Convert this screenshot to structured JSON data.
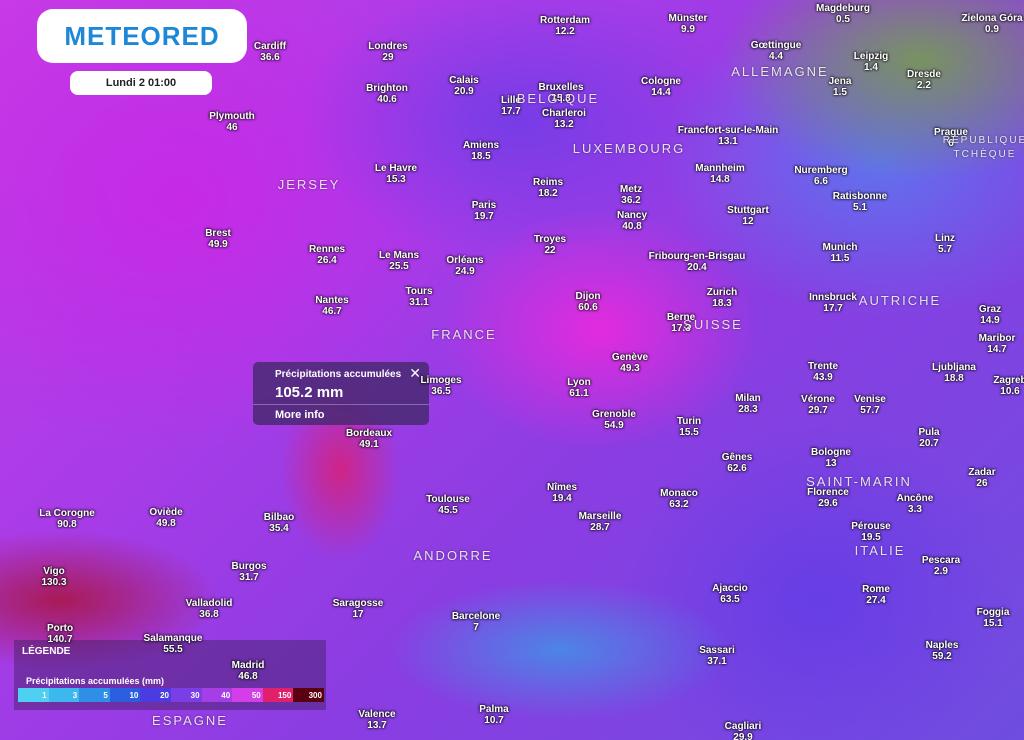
{
  "header": {
    "logo": "METEORED",
    "date": "Lundi 2 01:00"
  },
  "cities": [
    {
      "name": "Cardiff",
      "value": 36.6
    },
    {
      "name": "Londres",
      "value": 29
    },
    {
      "name": "Rotterdam",
      "value": 12.2
    },
    {
      "name": "Münster",
      "value": 9.9
    },
    {
      "name": "Magdeburg",
      "value": 0.5
    },
    {
      "name": "Zielona Góra",
      "value": 0.9
    },
    {
      "name": "Gœttingue",
      "value": 4.4
    },
    {
      "name": "Leipzig",
      "value": 1.4
    },
    {
      "name": "Dresde",
      "value": 2.2
    },
    {
      "name": "Jena",
      "value": 1.5
    },
    {
      "name": "Brighton",
      "value": 40.6
    },
    {
      "name": "Calais",
      "value": 20.9
    },
    {
      "name": "Bruxelles",
      "value": 15.3
    },
    {
      "name": "Lille",
      "value": 17.7
    },
    {
      "name": "Charleroi",
      "value": 13.2
    },
    {
      "name": "Cologne",
      "value": 14.4
    },
    {
      "name": "Plymouth",
      "value": 46
    },
    {
      "name": "Prague",
      "value": 6
    },
    {
      "name": "Francfort-sur-le-Main",
      "value": 13.1
    },
    {
      "name": "Amiens",
      "value": 18.5
    },
    {
      "name": "Le Havre",
      "value": 15.3
    },
    {
      "name": "Mannheim",
      "value": 14.8
    },
    {
      "name": "Nuremberg",
      "value": 6.6
    },
    {
      "name": "Reims",
      "value": 18.2
    },
    {
      "name": "Metz",
      "value": 36.2
    },
    {
      "name": "Ratisbonne",
      "value": 5.1
    },
    {
      "name": "Paris",
      "value": 19.7
    },
    {
      "name": "Nancy",
      "value": 40.8
    },
    {
      "name": "Stuttgart",
      "value": 12
    },
    {
      "name": "Brest",
      "value": 49.9
    },
    {
      "name": "Troyes",
      "value": 22
    },
    {
      "name": "Linz",
      "value": 5.7
    },
    {
      "name": "Rennes",
      "value": 26.4
    },
    {
      "name": "Munich",
      "value": 11.5
    },
    {
      "name": "Le Mans",
      "value": 25.5
    },
    {
      "name": "Orléans",
      "value": 24.9
    },
    {
      "name": "Fribourg-en-Brisgau",
      "value": 20.4
    },
    {
      "name": "Zurich",
      "value": 18.3
    },
    {
      "name": "Dijon",
      "value": 60.6
    },
    {
      "name": "Tours",
      "value": 31.1
    },
    {
      "name": "Innsbruck",
      "value": 17.7
    },
    {
      "name": "Nantes",
      "value": 46.7
    },
    {
      "name": "Graz",
      "value": 14.9
    },
    {
      "name": "Berne",
      "value": 17.3
    },
    {
      "name": "Maribor",
      "value": 14.7
    },
    {
      "name": "Genève",
      "value": 49.3
    },
    {
      "name": "Trente",
      "value": 43.9
    },
    {
      "name": "Ljubljana",
      "value": 18.8
    },
    {
      "name": "Limoges",
      "value": 36.5
    },
    {
      "name": "Zagreb",
      "value": 10.6
    },
    {
      "name": "Lyon",
      "value": 61.1
    },
    {
      "name": "Milan",
      "value": 28.3
    },
    {
      "name": "Vérone",
      "value": 29.7
    },
    {
      "name": "Venise",
      "value": 57.7
    },
    {
      "name": "Grenoble",
      "value": 54.9
    },
    {
      "name": "Turin",
      "value": 15.5
    },
    {
      "name": "Pula",
      "value": 20.7
    },
    {
      "name": "Bordeaux",
      "value": 49.1
    },
    {
      "name": "Bologne",
      "value": 13
    },
    {
      "name": "Gênes",
      "value": 62.6
    },
    {
      "name": "Zadar",
      "value": 26
    },
    {
      "name": "Nîmes",
      "value": 19.4
    },
    {
      "name": "Monaco",
      "value": 63.2
    },
    {
      "name": "Florence",
      "value": 29.6
    },
    {
      "name": "Ancône",
      "value": 3.3
    },
    {
      "name": "Toulouse",
      "value": 45.5
    },
    {
      "name": "La Corogne",
      "value": 90.8
    },
    {
      "name": "Oviède",
      "value": 49.8
    },
    {
      "name": "Marseille",
      "value": 28.7
    },
    {
      "name": "Bilbao",
      "value": 35.4
    },
    {
      "name": "Pérouse",
      "value": 19.5
    },
    {
      "name": "Vigo",
      "value": 130.3
    },
    {
      "name": "Burgos",
      "value": 31.7
    },
    {
      "name": "Pescara",
      "value": 2.9
    },
    {
      "name": "Ajaccio",
      "value": 63.5
    },
    {
      "name": "Rome",
      "value": 27.4
    },
    {
      "name": "Valladolid",
      "value": 36.8
    },
    {
      "name": "Saragosse",
      "value": 17
    },
    {
      "name": "Barcelone",
      "value": 7
    },
    {
      "name": "Foggia",
      "value": 15.1
    },
    {
      "name": "Porto",
      "value": 140.7
    },
    {
      "name": "Salamanque",
      "value": 55.5
    },
    {
      "name": "Sassari",
      "value": 37.1
    },
    {
      "name": "Naples",
      "value": 59.2
    },
    {
      "name": "Madrid",
      "value": 46.8
    },
    {
      "name": "Palma",
      "value": 10.7
    },
    {
      "name": "Valence",
      "value": 13.7
    },
    {
      "name": "Cagliari",
      "value": 29.9
    }
  ],
  "regions": [
    "ALLEMAGNE",
    "BELGIQUE",
    "LUXEMBOURG",
    "JERSEY",
    "FRANCE",
    "SUISSE",
    "AUTRICHE",
    "RÉPUBLIQUE",
    "TCHÈQUE",
    "ANDORRE",
    "SAINT-MARIN",
    "ITALIE",
    "ESPAGNE"
  ],
  "popup": {
    "title": "Précipitations accumulées",
    "value": "105.2 mm",
    "link": "More info"
  },
  "legend": {
    "title": "LÉGENDE",
    "subtitle": "Précipitations accumulées (mm)",
    "steps": [
      1,
      3,
      5,
      10,
      20,
      30,
      40,
      50,
      150,
      300
    ]
  }
}
